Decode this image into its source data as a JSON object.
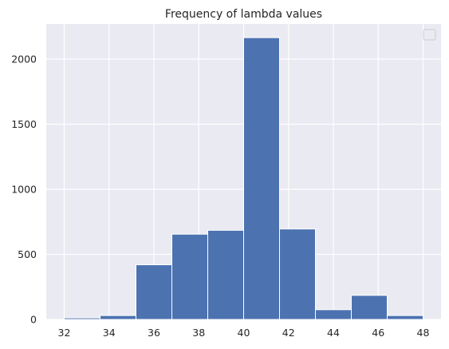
{
  "chart_data": {
    "type": "bar",
    "title": "Frequency of lambda values",
    "xlabel": "",
    "ylabel": "",
    "bin_edges": [
      32.0,
      33.6,
      35.2,
      36.8,
      38.4,
      40.0,
      41.6,
      43.2,
      44.8,
      46.4,
      48.0
    ],
    "values": [
      12,
      30,
      420,
      655,
      685,
      2165,
      695,
      75,
      185,
      30
    ],
    "xlim": [
      31.2,
      48.8
    ],
    "ylim": [
      0,
      2270
    ],
    "xticks": [
      32,
      34,
      36,
      38,
      40,
      42,
      44,
      46,
      48
    ],
    "yticks": [
      0,
      500,
      1000,
      1500,
      2000
    ],
    "grid": true,
    "legend": {
      "placement": "top-right",
      "entries": []
    },
    "colors": {
      "bar": "#4c72b0",
      "background": "#eaeaf2",
      "grid": "#ffffff"
    }
  }
}
